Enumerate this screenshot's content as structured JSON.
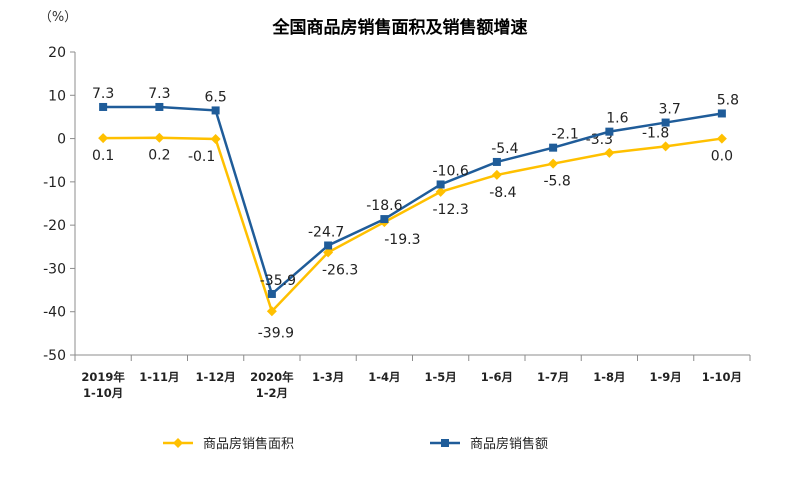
{
  "chart_data": {
    "type": "line",
    "title": "全国商品房销售面积及销售额增速",
    "unit_label": "（%）",
    "ylim": [
      -50,
      20
    ],
    "yticks": [
      20,
      10,
      0,
      -10,
      -20,
      -30,
      -40,
      -50
    ],
    "categories": [
      [
        "2019年",
        "1-10月"
      ],
      [
        "1-11月"
      ],
      [
        "1-12月"
      ],
      [
        "2020年",
        "1-2月"
      ],
      [
        "1-3月"
      ],
      [
        "1-4月"
      ],
      [
        "1-5月"
      ],
      [
        "1-6月"
      ],
      [
        "1-7月"
      ],
      [
        "1-8月"
      ],
      [
        "1-9月"
      ],
      [
        "1-10月"
      ]
    ],
    "series": [
      {
        "name": "商品房销售面积",
        "color": "#FFC000",
        "marker": "diamond",
        "values": [
          0.1,
          0.2,
          -0.1,
          -39.9,
          -26.3,
          -19.3,
          -12.3,
          -8.4,
          -5.8,
          -3.3,
          -1.8,
          0.0
        ],
        "labels": [
          "0.1",
          "0.2",
          "-0.1",
          "-39.9",
          "-26.3",
          "-19.3",
          "-12.3",
          "-8.4",
          "-5.8",
          "-3.3",
          "-1.8",
          "0.0"
        ]
      },
      {
        "name": "商品房销售额",
        "color": "#1F5C99",
        "marker": "square",
        "values": [
          7.3,
          7.3,
          6.5,
          -35.9,
          -24.7,
          -18.6,
          -10.6,
          -5.4,
          -2.1,
          1.6,
          3.7,
          5.8
        ],
        "labels": [
          "7.3",
          "7.3",
          "6.5",
          "-35.9",
          "-24.7",
          "-18.6",
          "-10.6",
          "-5.4",
          "-2.1",
          "1.6",
          "3.7",
          "5.8"
        ]
      }
    ],
    "legend": "bottom"
  }
}
